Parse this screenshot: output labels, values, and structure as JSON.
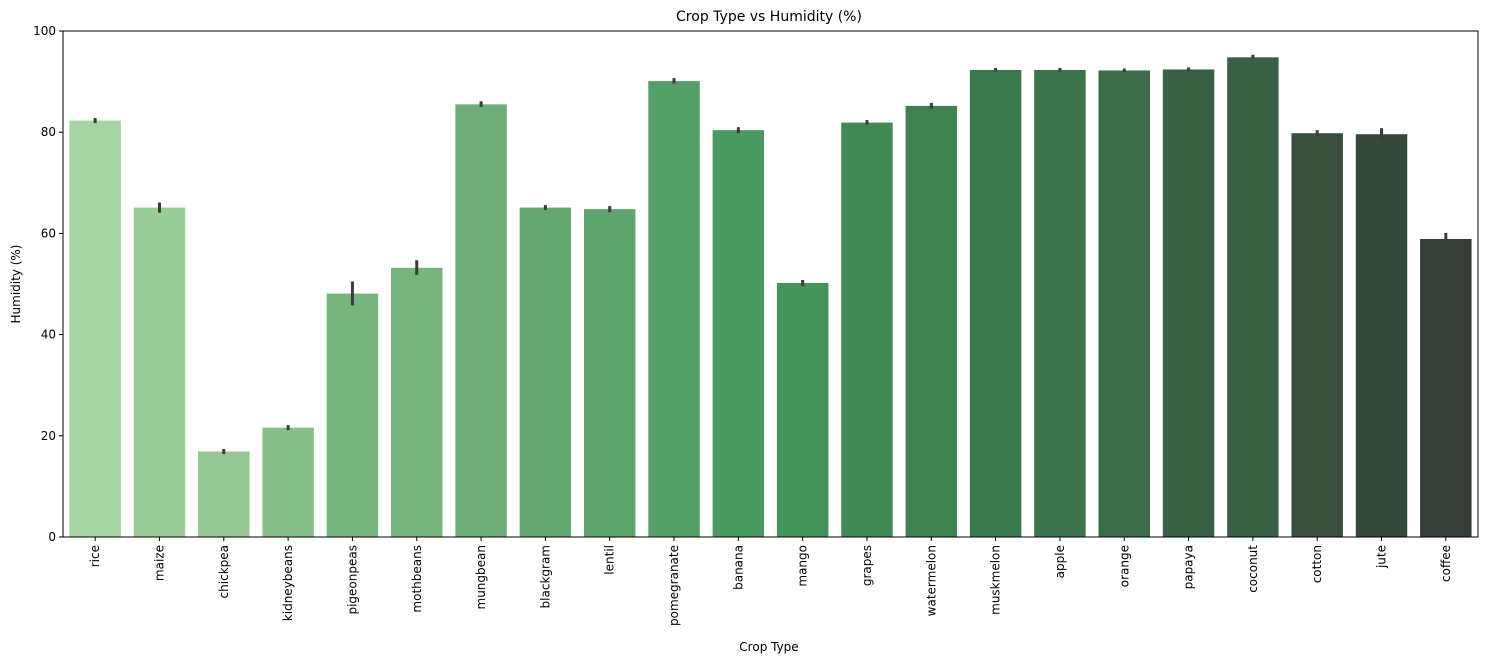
{
  "chart_data": {
    "type": "bar",
    "title": "Crop Type vs Humidity (%)",
    "xlabel": "Crop Type",
    "ylabel": "Humidity (%)",
    "ylim": [
      0,
      100
    ],
    "yticks": [
      0,
      20,
      40,
      60,
      80,
      100
    ],
    "grid": false,
    "categories": [
      "rice",
      "maize",
      "chickpea",
      "kidneybeans",
      "pigeonpeas",
      "mothbeans",
      "mungbean",
      "blackgram",
      "lentil",
      "pomegranate",
      "banana",
      "mango",
      "grapes",
      "watermelon",
      "muskmelon",
      "apple",
      "orange",
      "papaya",
      "coconut",
      "cotton",
      "jute",
      "coffee"
    ],
    "values": [
      82.3,
      65.1,
      16.9,
      21.6,
      48.1,
      53.2,
      85.5,
      65.1,
      64.8,
      90.1,
      80.4,
      50.2,
      81.9,
      85.2,
      92.3,
      92.3,
      92.2,
      92.4,
      94.8,
      79.8,
      79.6,
      58.9
    ],
    "error_low": [
      81.8,
      64.1,
      16.4,
      21.1,
      45.8,
      51.8,
      85.0,
      64.6,
      64.2,
      89.6,
      79.8,
      49.6,
      81.5,
      84.7,
      92.0,
      92.0,
      91.9,
      92.1,
      94.4,
      79.2,
      78.6,
      57.8
    ],
    "error_high": [
      82.8,
      66.1,
      17.4,
      22.1,
      50.5,
      54.7,
      86.1,
      65.6,
      65.4,
      90.7,
      81.0,
      50.8,
      82.4,
      85.8,
      92.7,
      92.7,
      92.6,
      92.8,
      95.3,
      80.4,
      80.8,
      60.1
    ],
    "colors": [
      "#a5d5a0",
      "#9bcd98",
      "#95c793",
      "#89c08a",
      "#78b47e",
      "#78b47e",
      "#6ead77",
      "#65a972",
      "#5ea56e",
      "#549f68",
      "#4a9960",
      "#43935b",
      "#418955",
      "#3e8252",
      "#3d794f",
      "#3d734d",
      "#3b6c4a",
      "#395f45",
      "#395f45",
      "#384f3d",
      "#36483b",
      "#363c37"
    ],
    "errorbar_color": "#3c3c3c"
  }
}
